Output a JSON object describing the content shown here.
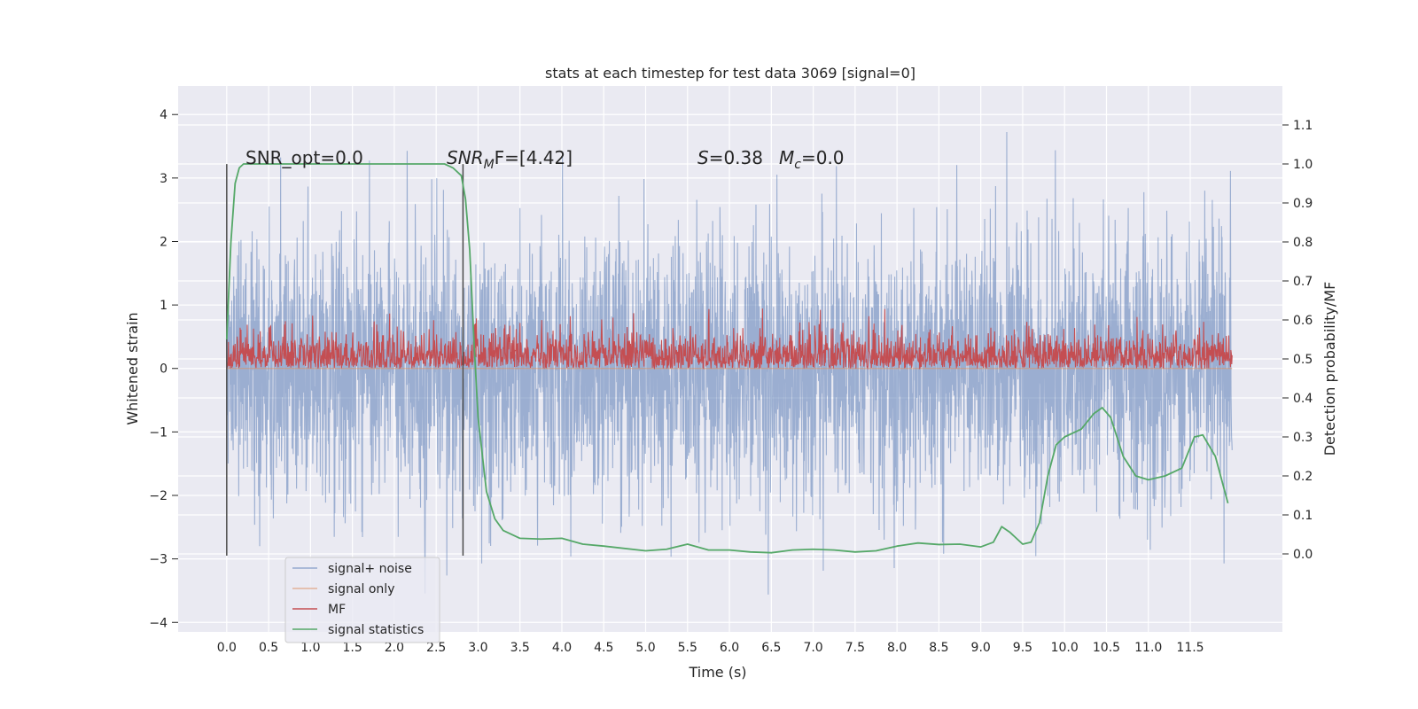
{
  "chart_data": {
    "type": "line",
    "title": "stats at each timestep for test data 3069 [signal=0]",
    "xlabel": "Time (s)",
    "ylabel": "Whitened strain",
    "y2label": "Detection probability/MF",
    "xlim": [
      -0.58,
      12.6
    ],
    "ylim": [
      -4.15,
      4.45
    ],
    "y2lim": [
      -0.2,
      1.2
    ],
    "x_ticks": [
      0.0,
      0.5,
      1.0,
      1.5,
      2.0,
      2.5,
      3.0,
      3.5,
      4.0,
      4.5,
      5.0,
      5.5,
      6.0,
      6.5,
      7.0,
      7.5,
      8.0,
      8.5,
      9.0,
      9.5,
      10.0,
      10.5,
      11.0,
      11.5
    ],
    "x_tick_labels": [
      "0.0",
      "0.5",
      "1.0",
      "1.5",
      "2.0",
      "2.5",
      "3.0",
      "3.5",
      "4.0",
      "4.5",
      "5.0",
      "5.5",
      "6.0",
      "6.5",
      "7.0",
      "7.5",
      "8.0",
      "8.5",
      "9.0",
      "9.5",
      "10.0",
      "10.5",
      "11.0",
      "11.5"
    ],
    "y_ticks": [
      -4,
      -3,
      -2,
      -1,
      0,
      1,
      2,
      3,
      4
    ],
    "y_tick_labels": [
      "−4",
      "−3",
      "−2",
      "−1",
      "0",
      "1",
      "2",
      "3",
      "4"
    ],
    "y2_ticks": [
      0.0,
      0.1,
      0.2,
      0.3,
      0.4,
      0.5,
      0.6,
      0.7,
      0.8,
      0.9,
      1.0,
      1.1
    ],
    "y2_tick_labels": [
      "0.0",
      "0.1",
      "0.2",
      "0.3",
      "0.4",
      "0.5",
      "0.6",
      "0.7",
      "0.8",
      "0.9",
      "1.0",
      "1.1"
    ],
    "grid": true,
    "legend_position": "lower-left",
    "series": [
      {
        "name": "signal+ noise",
        "color": "#4c72b0",
        "axis": "left",
        "style": "dense noise, approx. range [-3.7, 4.1]",
        "x_range": [
          0.0,
          12.0
        ]
      },
      {
        "name": "signal only",
        "color": "#dd8452",
        "axis": "left",
        "values_note": "zero throughout"
      },
      {
        "name": "MF",
        "color": "#c44e52",
        "axis": "left",
        "style": "dense noise, approx. range [0.0, 0.95]",
        "x_range": [
          0.0,
          12.0
        ]
      },
      {
        "name": "signal statistics",
        "color": "#55a868",
        "axis": "right",
        "x": [
          0.0,
          0.05,
          0.1,
          0.15,
          0.2,
          0.5,
          1.0,
          1.5,
          2.0,
          2.4,
          2.6,
          2.7,
          2.8,
          2.85,
          2.9,
          2.95,
          3.0,
          3.1,
          3.2,
          3.3,
          3.5,
          3.75,
          4.0,
          4.25,
          4.5,
          5.0,
          5.25,
          5.5,
          5.75,
          6.0,
          6.25,
          6.5,
          6.75,
          7.0,
          7.25,
          7.5,
          7.75,
          8.0,
          8.25,
          8.5,
          8.75,
          9.0,
          9.15,
          9.25,
          9.35,
          9.5,
          9.6,
          9.7,
          9.8,
          9.9,
          10.0,
          10.2,
          10.35,
          10.45,
          10.55,
          10.7,
          10.85,
          11.0,
          11.2,
          11.4,
          11.55,
          11.65,
          11.8,
          11.95
        ],
        "values": [
          0.55,
          0.8,
          0.95,
          0.99,
          1.0,
          1.0,
          1.0,
          1.0,
          1.0,
          1.0,
          1.0,
          0.99,
          0.97,
          0.91,
          0.78,
          0.55,
          0.35,
          0.16,
          0.09,
          0.06,
          0.04,
          0.038,
          0.04,
          0.025,
          0.02,
          0.008,
          0.012,
          0.025,
          0.01,
          0.01,
          0.005,
          0.003,
          0.01,
          0.012,
          0.01,
          0.005,
          0.008,
          0.02,
          0.028,
          0.024,
          0.025,
          0.018,
          0.03,
          0.07,
          0.055,
          0.025,
          0.03,
          0.08,
          0.2,
          0.28,
          0.3,
          0.32,
          0.36,
          0.375,
          0.35,
          0.25,
          0.2,
          0.19,
          0.2,
          0.22,
          0.3,
          0.305,
          0.25,
          0.13
        ]
      }
    ],
    "vertical_lines": [
      {
        "x": 0.0,
        "y_from": -2.95,
        "y_to": 3.22
      },
      {
        "x": 2.82,
        "y_from": -2.95,
        "y_to": 3.22
      }
    ],
    "annotations": [
      {
        "text": "SNR_opt=0.0",
        "x": 0.2,
        "y": 3.3
      },
      {
        "text_parts": [
          "SNR",
          "M",
          "F=[4.42]"
        ],
        "x": 2.6,
        "y": 3.3
      },
      {
        "text_parts": [
          "S",
          "=0.38",
          "M",
          "c",
          "=0.0"
        ],
        "x": 5.6,
        "y": 3.3
      }
    ]
  }
}
